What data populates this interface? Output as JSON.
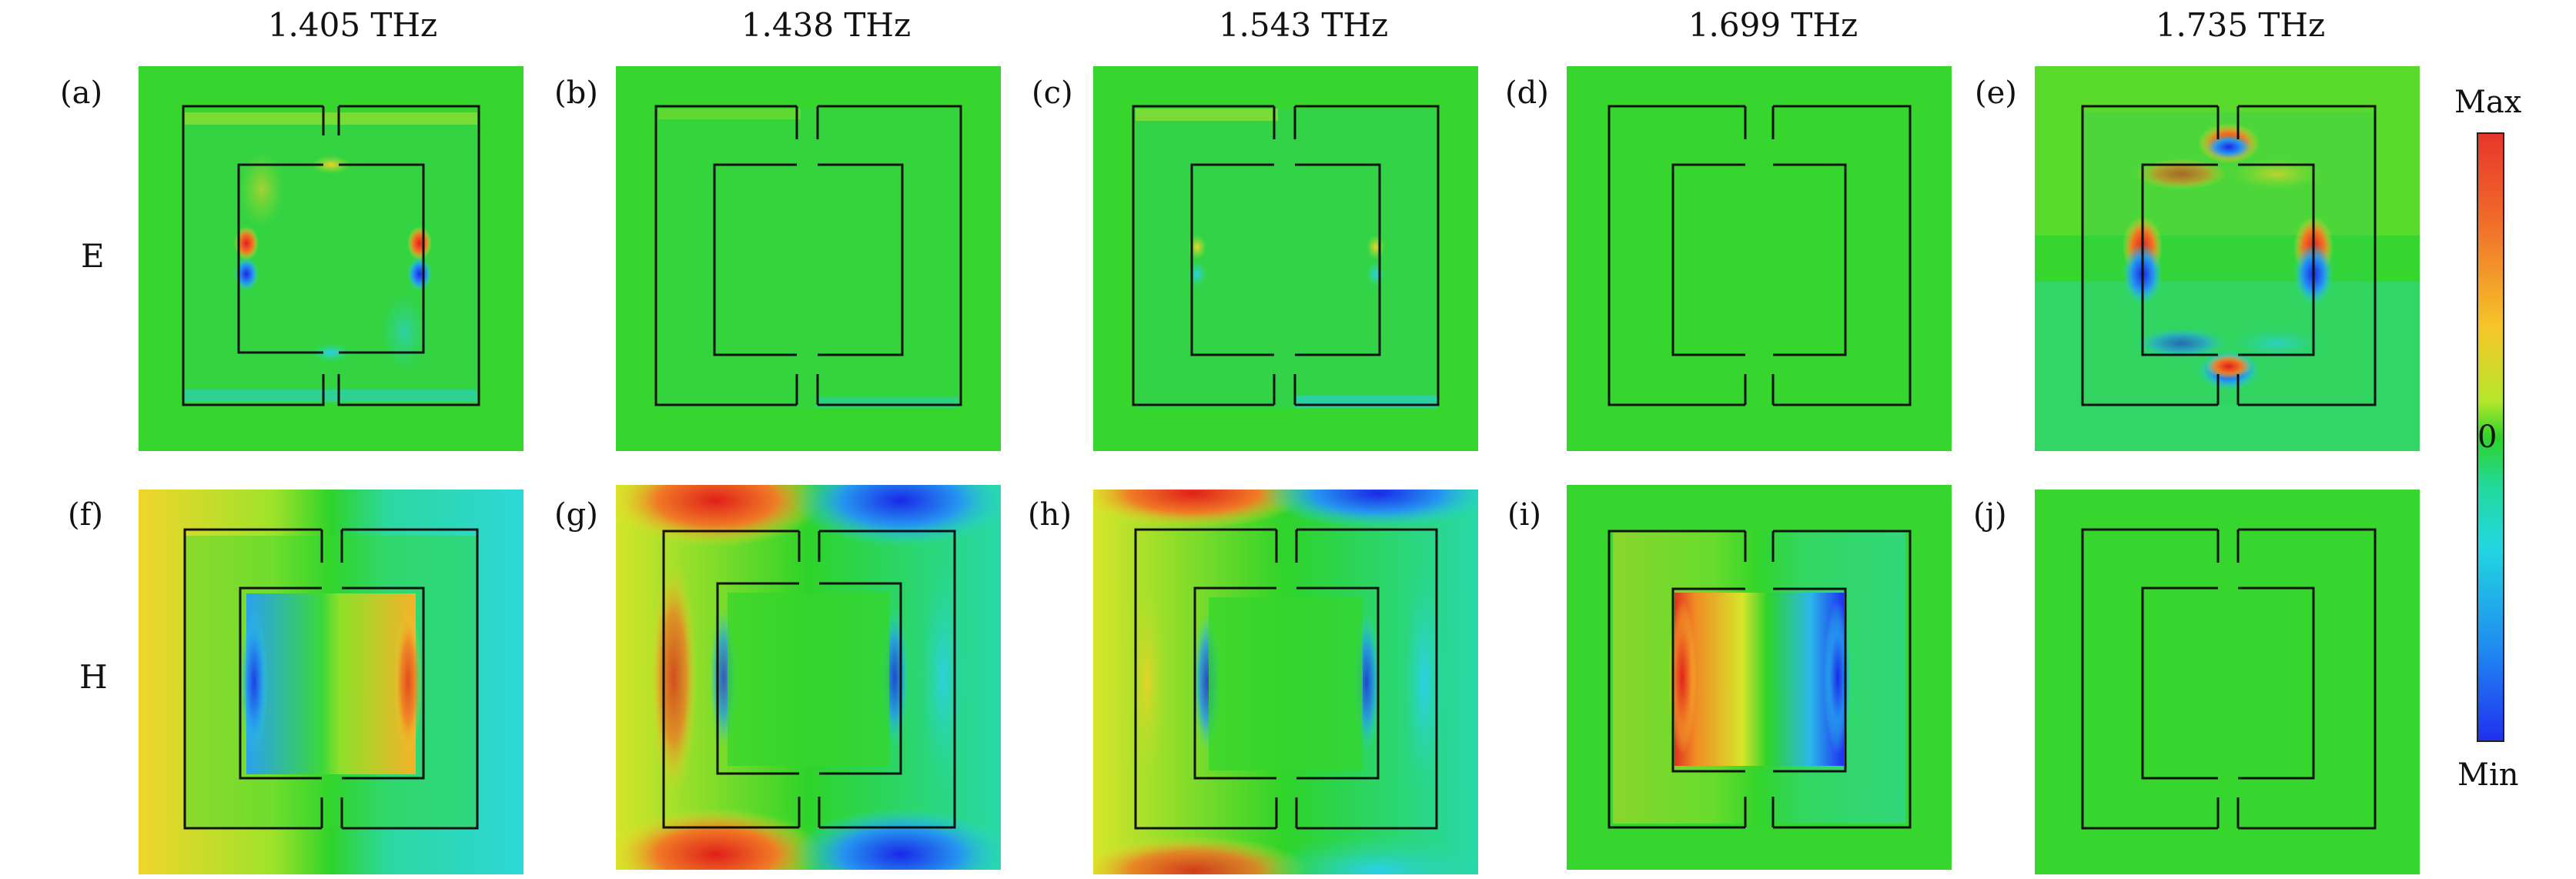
{
  "frequencies": [
    "1.405 THz",
    "1.438 THz",
    "1.543 THz",
    "1.699 THz",
    "1.735 THz"
  ],
  "row_labels": [
    "E",
    "H"
  ],
  "panel_labels": [
    "(a)",
    "(b)",
    "(c)",
    "(d)",
    "(e)",
    "(f)",
    "(g)",
    "(h)",
    "(i)",
    "(j)"
  ],
  "colorbar": {
    "max_label": "Max",
    "zero_label": "0",
    "min_label": "Min",
    "colors": [
      "#e8362c",
      "#f5c628",
      "#2ed32a",
      "#22d8e0",
      "#2030f0"
    ]
  }
}
